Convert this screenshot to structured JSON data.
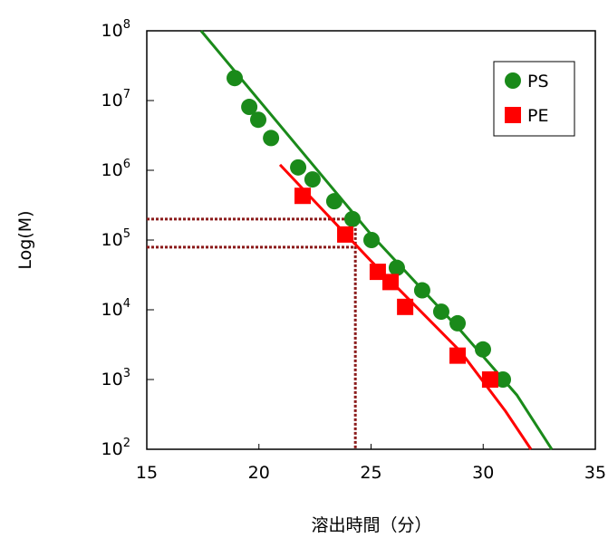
{
  "chart_data": {
    "type": "scatter",
    "xlabel": "溶出時間（分）",
    "ylabel": "Log(M)",
    "xlim": [
      15,
      35
    ],
    "xticks": [
      15,
      20,
      25,
      30,
      35
    ],
    "ylim": [
      100,
      100000000
    ],
    "log_y": true,
    "yticks": [
      {
        "value": 100,
        "label": "10",
        "exponent": "2"
      },
      {
        "value": 1000,
        "label": "10",
        "exponent": "3"
      },
      {
        "value": 10000,
        "label": "10",
        "exponent": "4"
      },
      {
        "value": 100000,
        "label": "10",
        "exponent": "5"
      },
      {
        "value": 1000000,
        "label": "10",
        "exponent": "6"
      },
      {
        "value": 10000000,
        "label": "10",
        "exponent": "7"
      },
      {
        "value": 100000000,
        "label": "10",
        "exponent": "8"
      }
    ],
    "legend": "upper right",
    "series": [
      {
        "name": "PS",
        "color": "#1a8a1a",
        "marker": "circle",
        "x": [
          18.92,
          19.57,
          19.97,
          20.54,
          21.75,
          22.39,
          23.36,
          24.17,
          25.02,
          26.15,
          27.28,
          28.13,
          28.86,
          29.99,
          30.88
        ],
        "values": [
          21000000,
          8100000,
          5300000,
          2900000,
          1100000,
          740000,
          360000,
          200000,
          100000,
          40000,
          19000,
          9400,
          6400,
          2700,
          1000
        ],
        "fit": {
          "x": [
            17.42,
            25.0,
            29.0,
            31.5,
            33.06
          ],
          "values": [
            100000000,
            120000,
            5000,
            600,
            100
          ]
        }
      },
      {
        "name": "PE",
        "color": "#ff0000",
        "marker": "square",
        "x": [
          21.95,
          23.85,
          25.3,
          25.87,
          26.52,
          28.86,
          30.31
        ],
        "values": [
          430000,
          120000,
          35000,
          25000,
          11000,
          2200,
          1000
        ],
        "fit": {
          "x": [
            20.94,
            25.0,
            29.0,
            31.0,
            32.13
          ],
          "values": [
            1200000,
            50000,
            2500,
            350,
            100
          ]
        }
      }
    ],
    "reference_lines": {
      "color": "#8b1a1a",
      "x": 24.3,
      "y": [
        200000,
        79000
      ]
    }
  }
}
